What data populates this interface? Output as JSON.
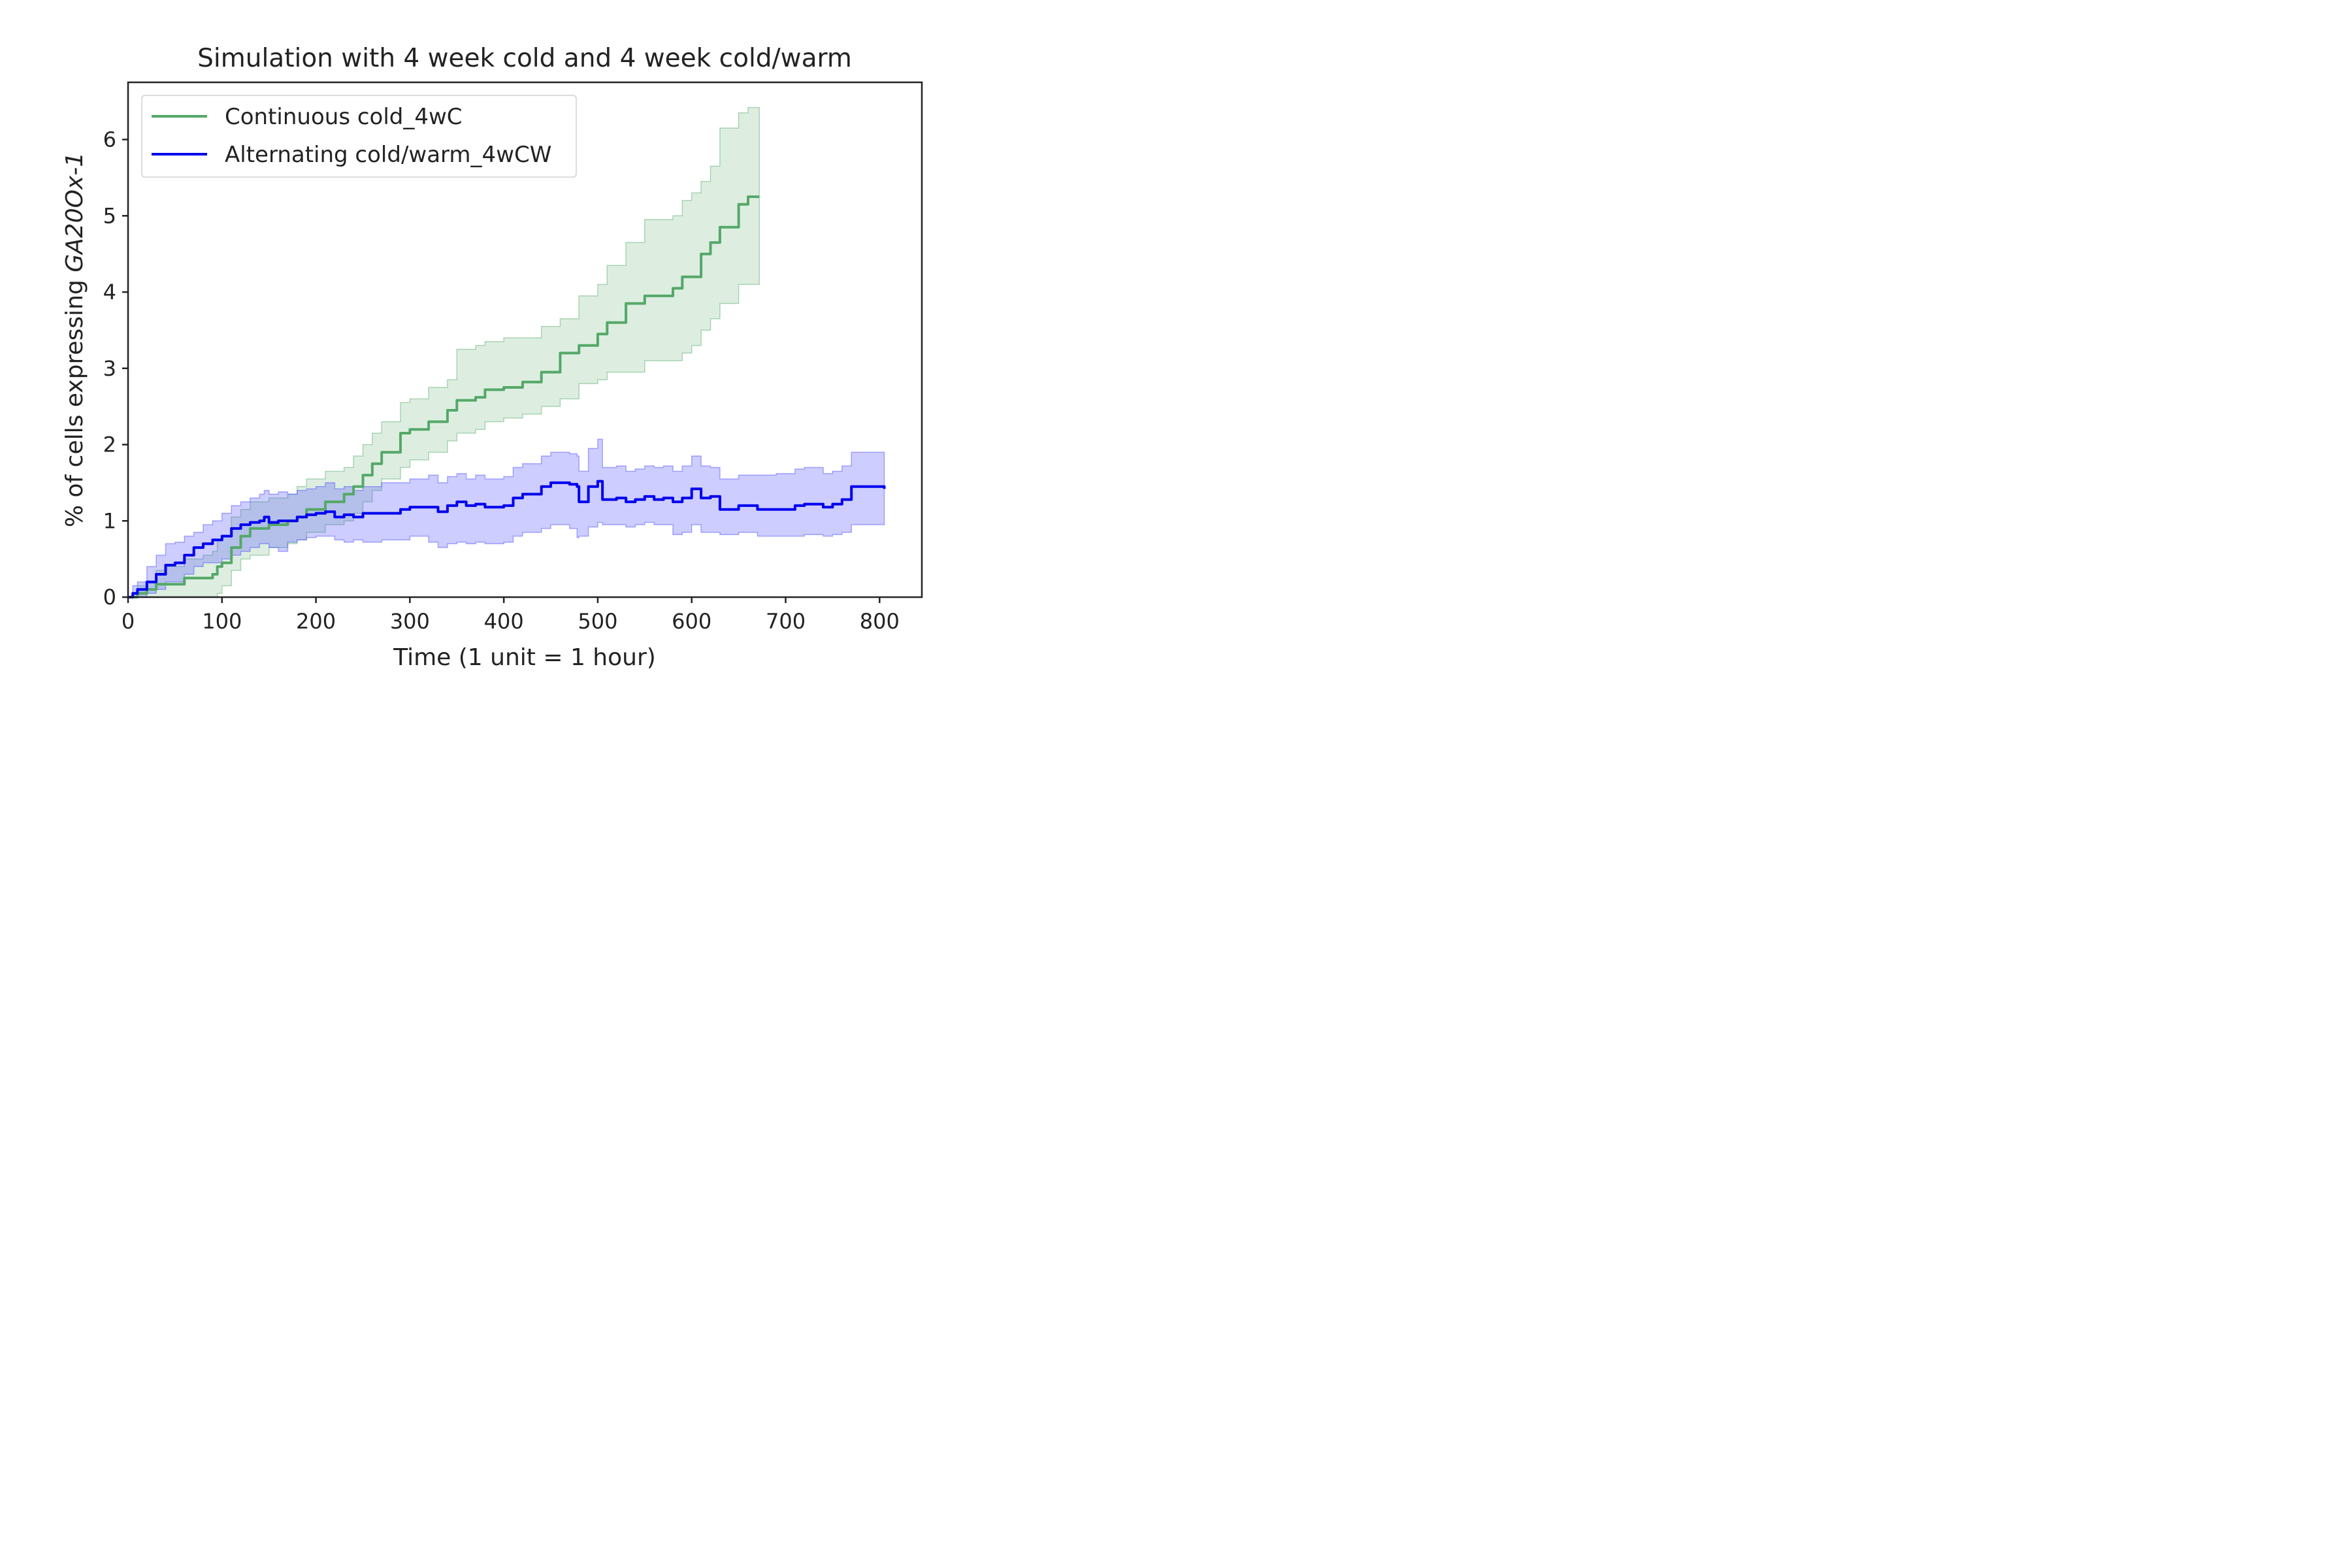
{
  "chart_data": {
    "type": "line",
    "title": "Simulation with 4 week cold and 4 week cold/warm",
    "xlabel": "Time (1 unit = 1 hour)",
    "ylabel_prefix": "% of cells expressing ",
    "ylabel_italic": "GA20Ox-1",
    "xlim": [
      0,
      845
    ],
    "ylim": [
      0,
      6.75
    ],
    "x_ticks": [
      0,
      100,
      200,
      300,
      400,
      500,
      600,
      700,
      800
    ],
    "y_ticks": [
      0,
      1,
      2,
      3,
      4,
      5,
      6
    ],
    "grid": false,
    "legend_position": "top-left",
    "series": [
      {
        "name": "Continuous cold_4wC",
        "color": "#55a868",
        "band_color": "#55a868",
        "x": [
          0,
          10,
          20,
          30,
          40,
          60,
          80,
          90,
          95,
          100,
          110,
          120,
          130,
          150,
          170,
          180,
          190,
          210,
          230,
          240,
          250,
          260,
          270,
          290,
          300,
          320,
          340,
          350,
          370,
          380,
          400,
          420,
          440,
          460,
          480,
          500,
          510,
          530,
          550,
          580,
          590,
          600,
          610,
          620,
          630,
          650,
          660,
          672
        ],
        "values": [
          0,
          0.05,
          0.1,
          0.17,
          0.17,
          0.25,
          0.25,
          0.3,
          0.4,
          0.45,
          0.65,
          0.8,
          0.9,
          0.95,
          1.0,
          1.05,
          1.15,
          1.25,
          1.35,
          1.45,
          1.6,
          1.75,
          1.9,
          2.15,
          2.2,
          2.3,
          2.45,
          2.58,
          2.62,
          2.72,
          2.75,
          2.82,
          2.95,
          3.2,
          3.3,
          3.45,
          3.6,
          3.85,
          3.95,
          4.05,
          4.2,
          4.2,
          4.5,
          4.65,
          4.85,
          5.15,
          5.25,
          5.25
        ],
        "lower": [
          0,
          0,
          0,
          0,
          0,
          0,
          0,
          0,
          0.05,
          0.15,
          0.35,
          0.5,
          0.55,
          0.65,
          0.7,
          0.75,
          0.85,
          0.95,
          1.0,
          1.1,
          1.25,
          1.4,
          1.55,
          1.7,
          1.8,
          1.9,
          2.05,
          2.15,
          2.2,
          2.3,
          2.35,
          2.4,
          2.5,
          2.6,
          2.8,
          2.85,
          2.95,
          2.95,
          3.1,
          3.1,
          3.2,
          3.3,
          3.5,
          3.65,
          3.85,
          4.1,
          4.1,
          4.1
        ],
        "upper": [
          0,
          0.15,
          0.2,
          0.35,
          0.4,
          0.5,
          0.55,
          0.6,
          0.75,
          0.8,
          1.05,
          1.15,
          1.25,
          1.3,
          1.35,
          1.45,
          1.55,
          1.65,
          1.7,
          1.85,
          2.0,
          2.15,
          2.3,
          2.55,
          2.6,
          2.75,
          2.85,
          3.25,
          3.3,
          3.35,
          3.4,
          3.4,
          3.55,
          3.65,
          3.95,
          4.1,
          4.35,
          4.65,
          4.95,
          5.0,
          5.2,
          5.3,
          5.45,
          5.65,
          6.15,
          6.35,
          6.42,
          6.42
        ]
      },
      {
        "name": "Alternating cold/warm_4wCW",
        "color": "#0000ee",
        "band_color": "#4a4aff",
        "x": [
          0,
          5,
          10,
          20,
          30,
          40,
          50,
          60,
          70,
          80,
          90,
          100,
          110,
          120,
          130,
          140,
          145,
          150,
          160,
          170,
          180,
          190,
          200,
          210,
          220,
          230,
          240,
          250,
          270,
          290,
          300,
          320,
          330,
          340,
          350,
          360,
          370,
          380,
          400,
          410,
          420,
          440,
          450,
          470,
          478,
          480,
          490,
          500,
          505,
          520,
          530,
          540,
          550,
          560,
          570,
          580,
          590,
          600,
          610,
          620,
          630,
          650,
          670,
          690,
          710,
          720,
          730,
          740,
          750,
          760,
          770,
          790,
          805
        ],
        "values": [
          0,
          0.05,
          0.1,
          0.2,
          0.3,
          0.42,
          0.45,
          0.55,
          0.65,
          0.7,
          0.75,
          0.8,
          0.9,
          0.95,
          0.98,
          1.0,
          1.05,
          0.98,
          1.0,
          1.0,
          1.05,
          1.08,
          1.1,
          1.12,
          1.05,
          1.08,
          1.05,
          1.1,
          1.1,
          1.15,
          1.18,
          1.18,
          1.12,
          1.2,
          1.25,
          1.2,
          1.22,
          1.18,
          1.2,
          1.3,
          1.35,
          1.45,
          1.5,
          1.48,
          1.45,
          1.25,
          1.45,
          1.52,
          1.28,
          1.3,
          1.25,
          1.28,
          1.32,
          1.28,
          1.3,
          1.25,
          1.3,
          1.42,
          1.3,
          1.32,
          1.15,
          1.2,
          1.15,
          1.15,
          1.2,
          1.22,
          1.22,
          1.18,
          1.22,
          1.28,
          1.45,
          1.45,
          1.42
        ],
        "lower": [
          0,
          0,
          0,
          0.05,
          0.1,
          0.2,
          0.2,
          0.3,
          0.4,
          0.45,
          0.45,
          0.5,
          0.55,
          0.6,
          0.65,
          0.7,
          0.7,
          0.65,
          0.6,
          0.72,
          0.75,
          0.78,
          0.8,
          0.8,
          0.75,
          0.72,
          0.75,
          0.72,
          0.75,
          0.75,
          0.8,
          0.72,
          0.65,
          0.7,
          0.72,
          0.7,
          0.72,
          0.7,
          0.72,
          0.8,
          0.85,
          0.9,
          0.95,
          0.9,
          0.78,
          0.8,
          0.92,
          0.98,
          0.95,
          0.95,
          0.92,
          0.95,
          0.98,
          0.95,
          0.95,
          0.82,
          0.85,
          0.95,
          0.85,
          0.85,
          0.82,
          0.85,
          0.8,
          0.8,
          0.8,
          0.82,
          0.82,
          0.8,
          0.82,
          0.85,
          0.95,
          0.95,
          0.95
        ],
        "upper": [
          0,
          0.15,
          0.2,
          0.4,
          0.55,
          0.7,
          0.72,
          0.8,
          0.85,
          0.95,
          1.0,
          1.1,
          1.2,
          1.25,
          1.3,
          1.35,
          1.4,
          1.35,
          1.38,
          1.35,
          1.4,
          1.42,
          1.45,
          1.5,
          1.42,
          1.45,
          1.4,
          1.45,
          1.5,
          1.5,
          1.55,
          1.6,
          1.5,
          1.58,
          1.62,
          1.55,
          1.6,
          1.55,
          1.58,
          1.7,
          1.75,
          1.85,
          1.9,
          1.88,
          1.85,
          1.65,
          1.95,
          2.07,
          1.7,
          1.72,
          1.65,
          1.68,
          1.72,
          1.7,
          1.72,
          1.65,
          1.72,
          1.85,
          1.72,
          1.7,
          1.55,
          1.6,
          1.6,
          1.62,
          1.68,
          1.7,
          1.7,
          1.62,
          1.65,
          1.72,
          1.9,
          1.9,
          1.88
        ]
      }
    ]
  }
}
